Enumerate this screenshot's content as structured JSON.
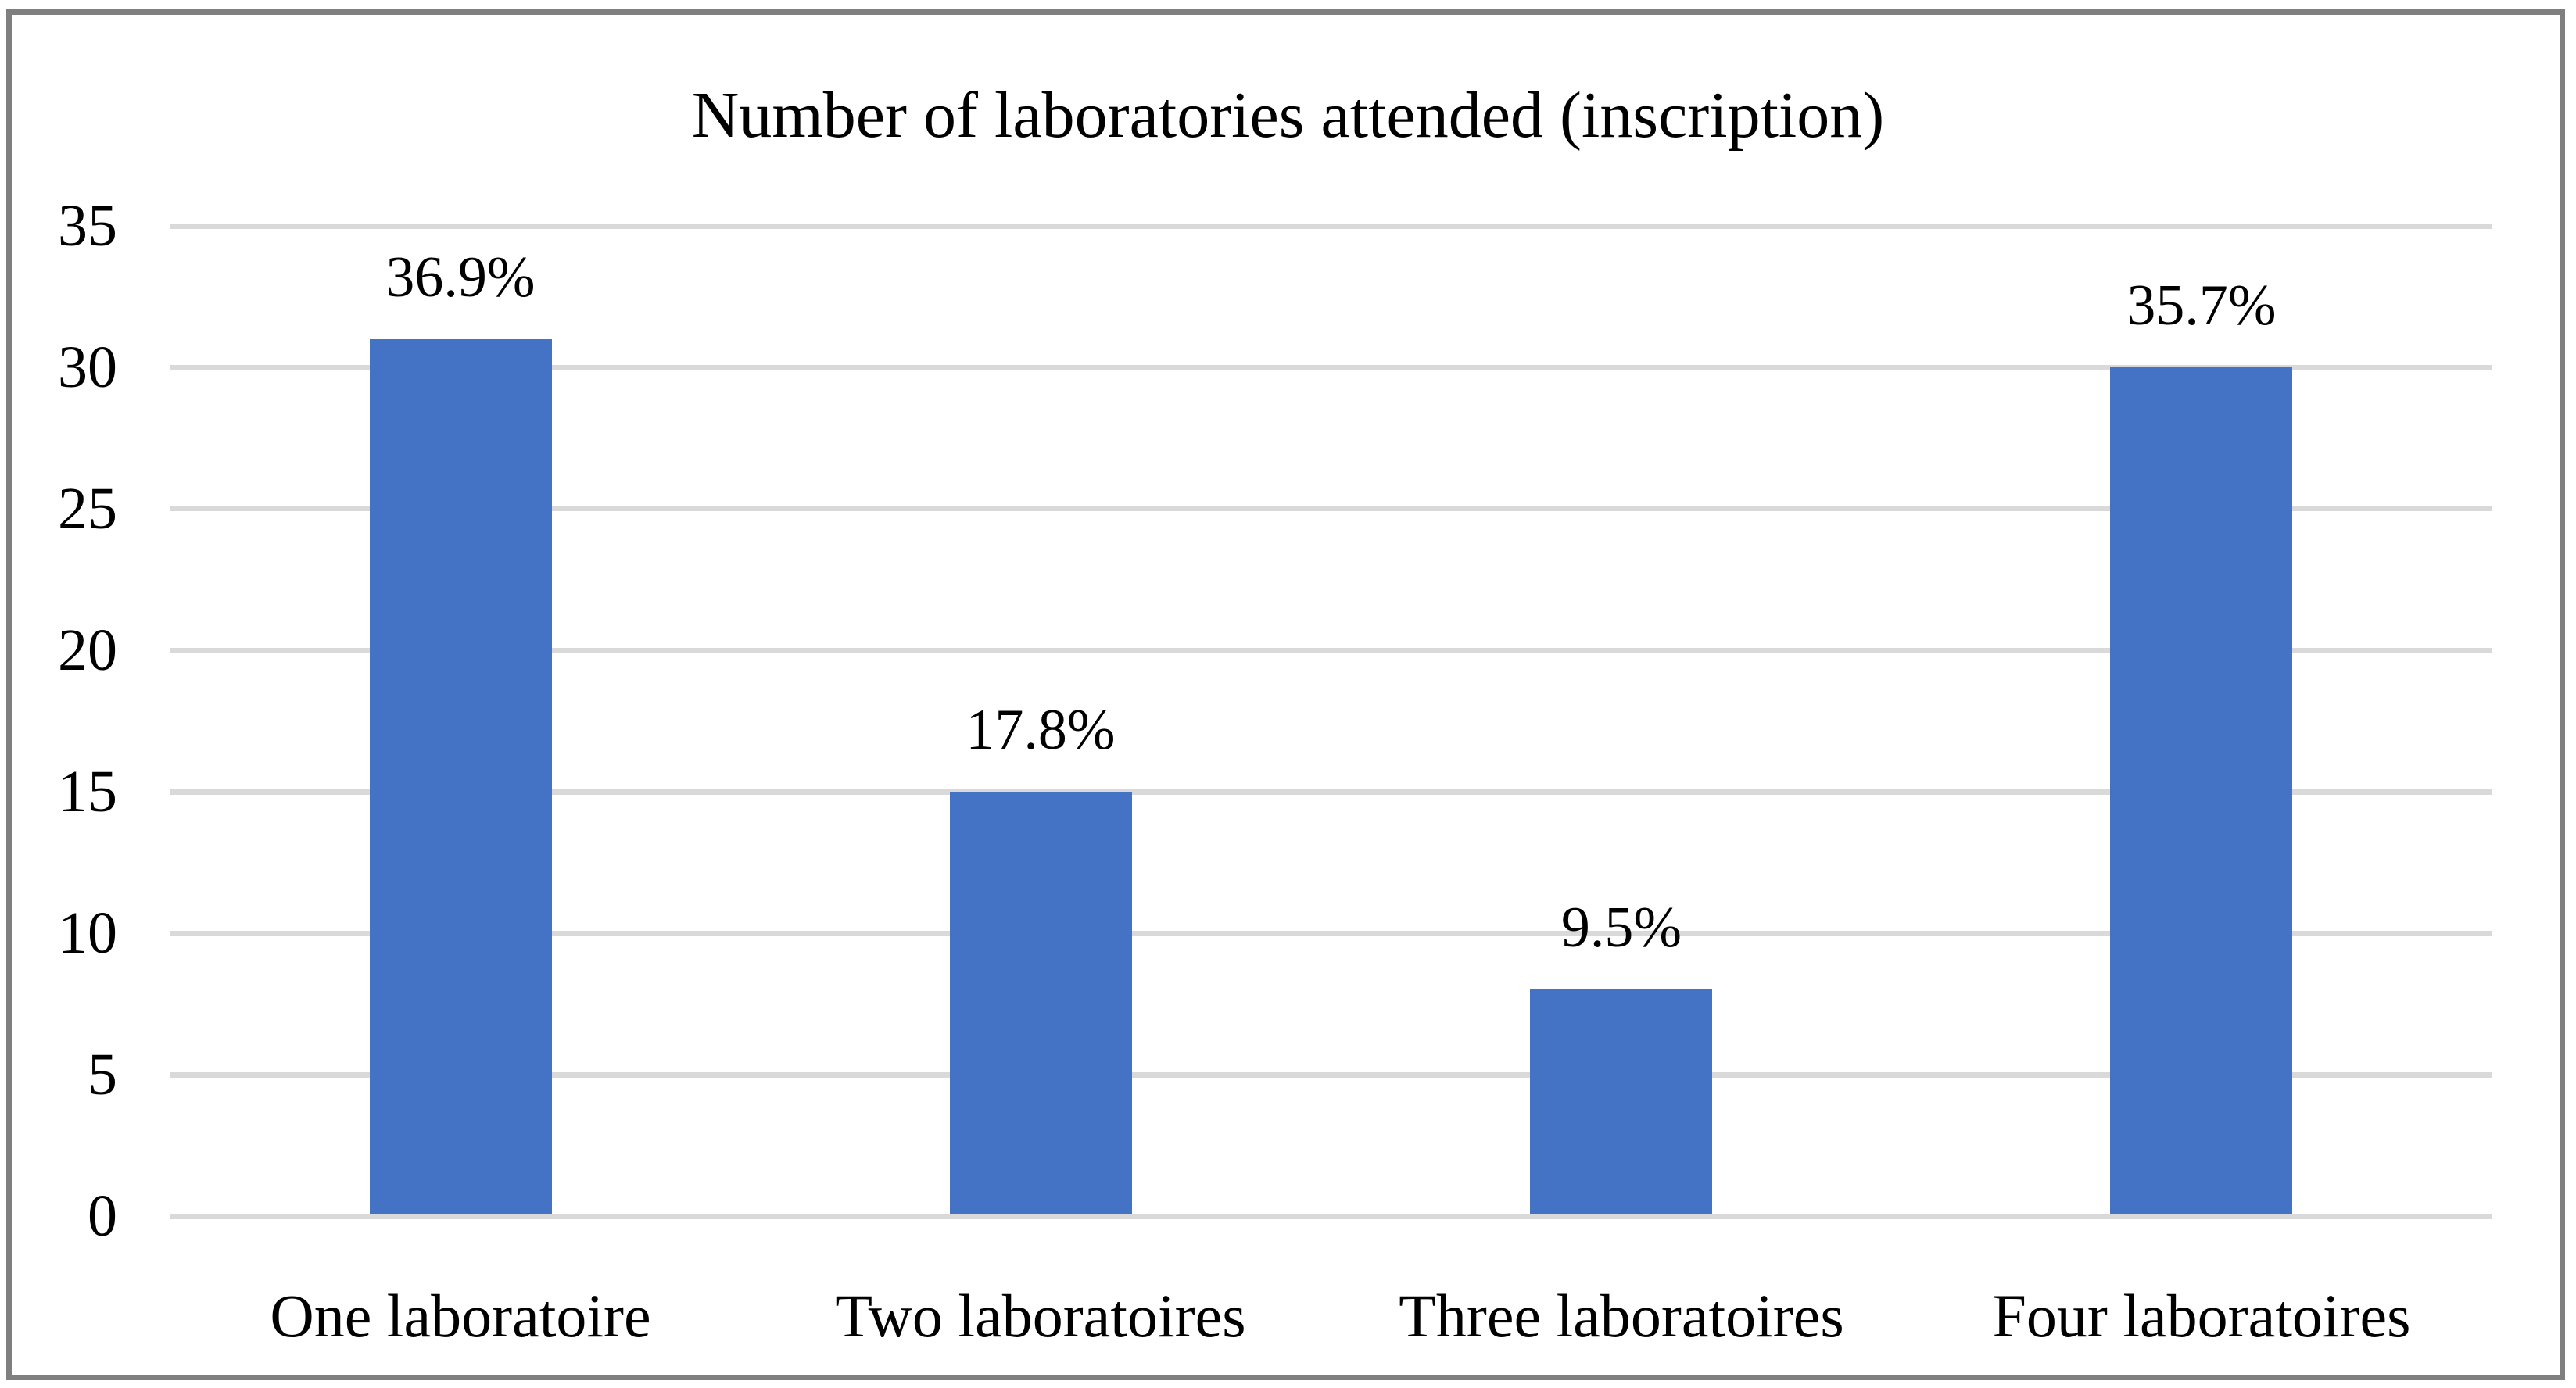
{
  "figure": {
    "background_color": "#FFFFFF",
    "border_color": "#7F7F7F"
  },
  "chart_data": {
    "type": "bar",
    "title": "Number of laboratories attended (inscription)",
    "categories": [
      "One laboratoire",
      "Two laboratoires",
      "Three laboratoires",
      "Four laboratoires"
    ],
    "values": [
      31,
      15,
      8,
      30
    ],
    "data_labels": [
      "36.9%",
      "17.8%",
      "9.5%",
      "35.7%"
    ],
    "series": [
      {
        "name": "Number of laboratories attended (inscription)",
        "values": [
          31,
          15,
          8,
          30
        ],
        "labels": [
          "36.9%",
          "17.8%",
          "9.5%",
          "35.7%"
        ]
      }
    ],
    "xlabel": "",
    "ylabel": "",
    "ylim": [
      0,
      35
    ],
    "y_ticks": [
      0,
      5,
      10,
      15,
      20,
      25,
      30,
      35
    ],
    "grid": true,
    "legend_position": "none",
    "bar_color": "#4472C4",
    "gridline_color": "#D9D9D9",
    "text_color": "#000000"
  }
}
